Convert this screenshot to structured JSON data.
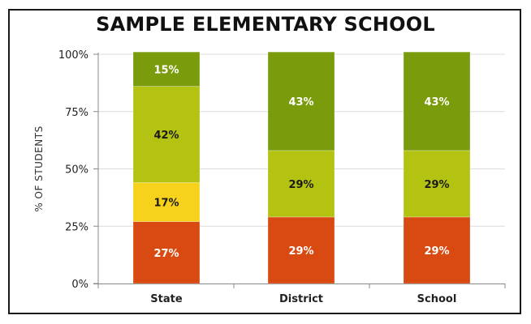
{
  "chart_data": {
    "type": "bar",
    "stacked": true,
    "title": "SAMPLE ELEMENTARY SCHOOL",
    "ylabel": "% OF STUDENTS",
    "xlabel": "",
    "ylim": [
      0,
      100
    ],
    "yticks": [
      "0%",
      "25%",
      "50%",
      "75%",
      "100%"
    ],
    "grid": true,
    "legend": "none",
    "categories": [
      "State",
      "District",
      "School"
    ],
    "series": [
      {
        "color": "#d94a12",
        "label_color": "#ffffff",
        "values": [
          27,
          29,
          29
        ],
        "labels": [
          "27%",
          "29%",
          "29%"
        ]
      },
      {
        "color": "#f7d21c",
        "label_color": "#1a1a1a",
        "values": [
          17,
          0,
          0
        ],
        "labels": [
          "17%",
          "",
          ""
        ]
      },
      {
        "color": "#b4c212",
        "label_color": "#1a1a1a",
        "values": [
          42,
          29,
          29
        ],
        "labels": [
          "42%",
          "29%",
          "29%"
        ]
      },
      {
        "color": "#7a9c0c",
        "label_color": "#ffffff",
        "values": [
          15,
          43,
          43
        ],
        "labels": [
          "15%",
          "43%",
          "43%"
        ]
      }
    ]
  }
}
